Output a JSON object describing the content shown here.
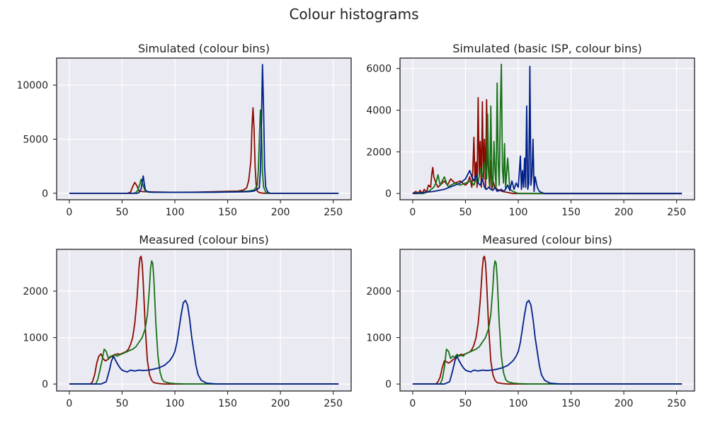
{
  "figure_title": "Colour histograms",
  "colors": {
    "red": "#8b0a00",
    "green": "#157215",
    "blue": "#00208a",
    "panel_bg": "#eaeaf2"
  },
  "chart_data": [
    {
      "type": "line",
      "title": "Simulated (colour bins)",
      "xlabel": "",
      "ylabel": "",
      "xlim": [
        -12,
        267
      ],
      "ylim": [
        -600,
        12500
      ],
      "xticks": [
        0,
        50,
        100,
        150,
        200,
        250
      ],
      "yticks": [
        0,
        5000,
        10000
      ],
      "grid": true,
      "series": [
        {
          "color": "red",
          "x": [
            0,
            55,
            58,
            60,
            62,
            64,
            66,
            70,
            80,
            100,
            120,
            140,
            150,
            160,
            165,
            168,
            170,
            172,
            173,
            174,
            175,
            176,
            177,
            178,
            180,
            185,
            200,
            255
          ],
          "y": [
            0,
            0,
            100,
            600,
            1000,
            700,
            200,
            150,
            120,
            90,
            100,
            150,
            180,
            200,
            300,
            500,
            1200,
            3000,
            6000,
            7900,
            6000,
            2500,
            800,
            200,
            50,
            0,
            0,
            0
          ]
        },
        {
          "color": "green",
          "x": [
            0,
            60,
            63,
            65,
            67,
            68,
            70,
            72,
            75,
            80,
            100,
            140,
            160,
            170,
            175,
            178,
            179,
            180,
            181,
            182,
            183,
            184,
            186,
            188,
            190,
            200,
            255
          ],
          "y": [
            0,
            0,
            50,
            300,
            900,
            1300,
            700,
            200,
            100,
            90,
            80,
            100,
            150,
            200,
            300,
            700,
            2000,
            5000,
            7700,
            6000,
            2000,
            600,
            100,
            0,
            0,
            0,
            0
          ]
        },
        {
          "color": "blue",
          "x": [
            0,
            64,
            66,
            68,
            69,
            70,
            71,
            72,
            74,
            78,
            100,
            140,
            160,
            170,
            175,
            180,
            181,
            182,
            183,
            184,
            185,
            186,
            188,
            190,
            200,
            255
          ],
          "y": [
            0,
            0,
            50,
            400,
            1000,
            1600,
            900,
            300,
            150,
            100,
            80,
            100,
            120,
            150,
            200,
            500,
            2000,
            6500,
            11900,
            8000,
            2500,
            600,
            100,
            0,
            0,
            0
          ]
        }
      ]
    },
    {
      "type": "line",
      "title": "Simulated (basic ISP, colour bins)",
      "xlabel": "",
      "ylabel": "",
      "xlim": [
        -12,
        267
      ],
      "ylim": [
        -300,
        6500
      ],
      "xticks": [
        0,
        50,
        100,
        150,
        200,
        250
      ],
      "yticks": [
        0,
        2000,
        4000,
        6000
      ],
      "grid": true,
      "series": [
        {
          "color": "red",
          "x": [
            0,
            3,
            5,
            7,
            9,
            11,
            13,
            15,
            17,
            18,
            19,
            20,
            22,
            24,
            26,
            28,
            30,
            33,
            36,
            40,
            45,
            50,
            52,
            54,
            56,
            57,
            58,
            59,
            60,
            61,
            62,
            63,
            64,
            65,
            66,
            67,
            68,
            69,
            70,
            71,
            72,
            73,
            74,
            75,
            76,
            78,
            80,
            85,
            90,
            95,
            100,
            255
          ],
          "y": [
            0,
            100,
            0,
            150,
            0,
            200,
            50,
            400,
            300,
            900,
            1250,
            800,
            500,
            300,
            400,
            500,
            600,
            400,
            700,
            500,
            600,
            400,
            500,
            800,
            300,
            1200,
            2700,
            600,
            1500,
            300,
            4600,
            900,
            2500,
            300,
            4400,
            700,
            2600,
            200,
            4500,
            1800,
            900,
            300,
            1600,
            200,
            600,
            300,
            200,
            100,
            50,
            0,
            0,
            0
          ]
        },
        {
          "color": "green",
          "x": [
            0,
            10,
            15,
            20,
            22,
            24,
            26,
            28,
            30,
            32,
            34,
            36,
            40,
            45,
            50,
            55,
            58,
            60,
            62,
            64,
            66,
            68,
            70,
            71,
            72,
            73,
            74,
            75,
            76,
            77,
            78,
            79,
            80,
            81,
            82,
            83,
            84,
            85,
            86,
            87,
            88,
            89,
            90,
            92,
            95,
            100,
            255
          ],
          "y": [
            0,
            0,
            100,
            300,
            500,
            900,
            400,
            600,
            800,
            500,
            300,
            400,
            500,
            400,
            500,
            600,
            400,
            700,
            500,
            1200,
            800,
            1500,
            700,
            3800,
            1000,
            400,
            4200,
            800,
            300,
            2500,
            1100,
            300,
            5300,
            1500,
            400,
            3900,
            6200,
            1200,
            500,
            2400,
            200,
            1000,
            1700,
            200,
            100,
            0,
            0
          ]
        },
        {
          "color": "blue",
          "x": [
            0,
            10,
            20,
            30,
            35,
            40,
            45,
            50,
            52,
            54,
            56,
            58,
            60,
            62,
            64,
            66,
            68,
            70,
            72,
            74,
            76,
            78,
            80,
            82,
            84,
            86,
            88,
            90,
            92,
            94,
            96,
            98,
            100,
            102,
            103,
            104,
            105,
            106,
            107,
            108,
            109,
            110,
            111,
            112,
            113,
            114,
            115,
            116,
            118,
            120,
            122,
            125,
            255
          ],
          "y": [
            0,
            50,
            100,
            200,
            300,
            400,
            500,
            700,
            900,
            1100,
            800,
            600,
            900,
            500,
            400,
            700,
            300,
            200,
            300,
            200,
            150,
            300,
            100,
            150,
            200,
            100,
            200,
            400,
            150,
            600,
            200,
            500,
            300,
            1800,
            200,
            1100,
            300,
            1700,
            300,
            4200,
            200,
            500,
            6100,
            400,
            900,
            2600,
            100,
            800,
            300,
            100,
            50,
            0,
            0
          ]
        }
      ]
    },
    {
      "type": "line",
      "title": "Measured (colour bins)",
      "xlabel": "",
      "ylabel": "",
      "xlim": [
        -12,
        267
      ],
      "ylim": [
        -150,
        2900
      ],
      "xticks": [
        0,
        50,
        100,
        150,
        200,
        250
      ],
      "yticks": [
        0,
        1000,
        2000
      ],
      "grid": true,
      "series": [
        {
          "color": "red",
          "x": [
            0,
            20,
            22,
            24,
            26,
            28,
            30,
            32,
            34,
            36,
            38,
            40,
            42,
            44,
            46,
            48,
            50,
            52,
            54,
            56,
            58,
            60,
            62,
            64,
            66,
            67,
            68,
            69,
            70,
            72,
            74,
            76,
            78,
            80,
            85,
            90,
            95,
            100,
            255
          ],
          "y": [
            0,
            0,
            50,
            200,
            450,
            600,
            650,
            550,
            500,
            520,
            560,
            600,
            620,
            640,
            650,
            640,
            660,
            680,
            700,
            750,
            850,
            1000,
            1300,
            1800,
            2500,
            2720,
            2750,
            2600,
            2200,
            1200,
            500,
            200,
            80,
            30,
            10,
            0,
            0,
            0,
            0
          ]
        },
        {
          "color": "green",
          "x": [
            0,
            25,
            27,
            29,
            31,
            33,
            35,
            37,
            39,
            41,
            43,
            45,
            47,
            50,
            55,
            60,
            63,
            66,
            69,
            72,
            74,
            76,
            77,
            78,
            79,
            80,
            81,
            82,
            84,
            86,
            88,
            90,
            95,
            100,
            110,
            130,
            255
          ],
          "y": [
            0,
            0,
            100,
            300,
            500,
            750,
            700,
            550,
            600,
            580,
            640,
            600,
            620,
            650,
            700,
            750,
            800,
            900,
            1000,
            1200,
            1500,
            2100,
            2500,
            2650,
            2600,
            2300,
            1800,
            1300,
            600,
            250,
            100,
            50,
            20,
            10,
            0,
            0,
            0
          ]
        },
        {
          "color": "blue",
          "x": [
            0,
            30,
            35,
            38,
            40,
            42,
            44,
            46,
            48,
            50,
            52,
            55,
            58,
            62,
            66,
            70,
            75,
            80,
            85,
            90,
            95,
            98,
            100,
            102,
            104,
            106,
            108,
            110,
            112,
            114,
            116,
            118,
            120,
            122,
            125,
            130,
            140,
            255
          ],
          "y": [
            0,
            0,
            50,
            300,
            500,
            600,
            500,
            420,
            350,
            300,
            280,
            260,
            300,
            280,
            300,
            290,
            300,
            320,
            350,
            400,
            500,
            600,
            700,
            900,
            1200,
            1500,
            1750,
            1800,
            1700,
            1400,
            1000,
            700,
            400,
            200,
            80,
            20,
            0,
            0
          ]
        }
      ]
    },
    {
      "type": "line",
      "title": "Measured (colour bins)",
      "xlabel": "",
      "ylabel": "",
      "xlim": [
        -12,
        267
      ],
      "ylim": [
        -150,
        2900
      ],
      "xticks": [
        0,
        50,
        100,
        150,
        200,
        250
      ],
      "yticks": [
        0,
        1000,
        2000
      ],
      "grid": true,
      "series": [
        {
          "color": "red",
          "x": [
            0,
            22,
            24,
            26,
            28,
            30,
            32,
            34,
            36,
            38,
            40,
            42,
            44,
            46,
            48,
            50,
            52,
            54,
            56,
            58,
            60,
            62,
            64,
            66,
            67,
            68,
            69,
            70,
            72,
            74,
            76,
            78,
            80,
            85,
            90,
            95,
            100,
            255
          ],
          "y": [
            0,
            0,
            50,
            150,
            350,
            500,
            480,
            450,
            480,
            520,
            560,
            600,
            620,
            640,
            630,
            650,
            670,
            690,
            740,
            840,
            1000,
            1300,
            1800,
            2500,
            2720,
            2750,
            2600,
            2200,
            1200,
            500,
            200,
            80,
            30,
            10,
            0,
            0,
            0,
            0
          ]
        },
        {
          "color": "green",
          "x": [
            0,
            26,
            28,
            30,
            32,
            34,
            36,
            38,
            40,
            42,
            44,
            46,
            48,
            50,
            55,
            60,
            63,
            66,
            69,
            72,
            74,
            76,
            77,
            78,
            79,
            80,
            81,
            82,
            84,
            86,
            88,
            90,
            95,
            100,
            110,
            130,
            255
          ],
          "y": [
            0,
            0,
            100,
            350,
            750,
            700,
            550,
            600,
            580,
            640,
            600,
            620,
            600,
            650,
            700,
            750,
            800,
            900,
            1000,
            1200,
            1500,
            2100,
            2500,
            2650,
            2600,
            2300,
            1800,
            1300,
            600,
            250,
            100,
            50,
            20,
            10,
            0,
            0,
            0
          ]
        },
        {
          "color": "blue",
          "x": [
            0,
            30,
            35,
            38,
            40,
            42,
            44,
            46,
            48,
            50,
            52,
            55,
            58,
            62,
            66,
            70,
            75,
            80,
            85,
            90,
            95,
            98,
            100,
            102,
            104,
            106,
            108,
            110,
            112,
            114,
            116,
            118,
            120,
            122,
            125,
            130,
            140,
            255
          ],
          "y": [
            0,
            0,
            50,
            300,
            500,
            600,
            500,
            420,
            350,
            300,
            280,
            260,
            300,
            280,
            300,
            290,
            300,
            320,
            350,
            400,
            500,
            600,
            700,
            900,
            1200,
            1500,
            1750,
            1800,
            1700,
            1400,
            1000,
            700,
            400,
            200,
            80,
            20,
            0,
            0
          ]
        }
      ]
    }
  ]
}
